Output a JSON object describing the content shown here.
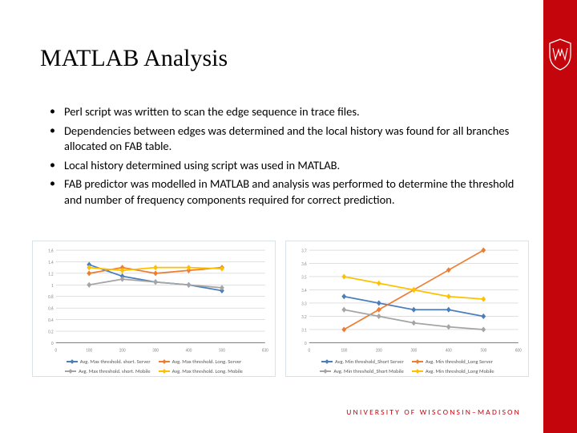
{
  "title": "MATLAB Analysis",
  "bullets": [
    "Perl script was written to scan the edge sequence in trace files.",
    "Dependencies between edges was determined and the local history was found for all branches allocated on FAB table.",
    "Local history determined using script was used in MATLAB.",
    "FAB predictor was modelled in MATLAB and analysis was performed to determine the threshold and number of frequency components required for correct prediction."
  ],
  "footer": "UNIVERSITY OF WISCONSIN–MADISON",
  "colors": {
    "accent": "#c5050c",
    "axis": "#888888",
    "grid": "#cccccc",
    "tick_text": "#888888"
  },
  "series_colors": {
    "blue": "#4a7ebb",
    "orange": "#ed7d31",
    "gray": "#a5a5a5",
    "yellow": "#ffc000"
  },
  "chart_left": {
    "title": "",
    "xlim": [
      0,
      630
    ],
    "xticks": [
      0,
      100,
      200,
      300,
      400,
      500,
      630
    ],
    "xtick_labels": [
      "0",
      "100",
      "200",
      "300",
      "400",
      "500",
      "630"
    ],
    "ylim": [
      0,
      1.6
    ],
    "yticks": [
      0,
      0.2,
      0.4,
      0.6,
      0.8,
      1,
      1.2,
      1.4,
      1.6
    ],
    "series": [
      {
        "name": "Avg. Max threshold. short. Server",
        "color": "blue",
        "x": [
          100,
          200,
          300,
          400,
          500
        ],
        "y": [
          1.35,
          1.15,
          1.05,
          1.0,
          0.9
        ]
      },
      {
        "name": "Avg. Max threshold. Long. Server",
        "color": "orange",
        "x": [
          100,
          200,
          300,
          400,
          500
        ],
        "y": [
          1.2,
          1.3,
          1.2,
          1.25,
          1.3
        ]
      },
      {
        "name": "Avg. Max threshold. short. Mobile",
        "color": "gray",
        "x": [
          100,
          200,
          300,
          400,
          500
        ],
        "y": [
          1.0,
          1.1,
          1.05,
          1.0,
          0.95
        ]
      },
      {
        "name": "Avg. Max threshold. Long. Mobile",
        "color": "yellow",
        "x": [
          100,
          200,
          300,
          400,
          500
        ],
        "y": [
          1.3,
          1.25,
          1.3,
          1.3,
          1.28
        ]
      }
    ],
    "legend": [
      {
        "label": "Avg. Max threshold. short. Server",
        "color": "blue"
      },
      {
        "label": "Avg. Max threshold. Long. Server",
        "color": "orange"
      },
      {
        "label": "Avg. Max threshold. short. Mobile",
        "color": "gray"
      },
      {
        "label": "Avg. Max threshold. Long. Mobile",
        "color": "yellow"
      }
    ]
  },
  "chart_right": {
    "title": "",
    "xlim": [
      0,
      600
    ],
    "xticks": [
      0,
      100,
      200,
      300,
      400,
      500,
      600
    ],
    "xtick_labels": [
      "0",
      "100",
      "200",
      "300",
      "400",
      "500",
      "600"
    ],
    "ylim": [
      0,
      3.7
    ],
    "yticks": [
      0,
      3.1,
      3.2,
      3.3,
      3.4,
      3.5,
      3.6,
      3.7
    ],
    "series": [
      {
        "name": "Avg. Min threshold_Short Server",
        "color": "blue",
        "x": [
          100,
          200,
          300,
          400,
          500
        ],
        "y": [
          3.35,
          3.3,
          3.25,
          3.25,
          3.2
        ]
      },
      {
        "name": "Avg. Min threshold_Long Server",
        "color": "orange",
        "x": [
          100,
          200,
          300,
          400,
          500
        ],
        "y": [
          3.1,
          3.25,
          3.4,
          3.55,
          3.7
        ]
      },
      {
        "name": "Avg. Min threshold_Short Mobile",
        "color": "gray",
        "x": [
          100,
          200,
          300,
          400,
          500
        ],
        "y": [
          3.25,
          3.2,
          3.15,
          3.12,
          3.1
        ]
      },
      {
        "name": "Avg. Min threshold_Long Mobile",
        "color": "yellow",
        "x": [
          100,
          200,
          300,
          400,
          500
        ],
        "y": [
          3.5,
          3.45,
          3.4,
          3.35,
          3.33
        ]
      }
    ],
    "legend": [
      {
        "label": "Avg. Min threshold_Short Server",
        "color": "blue"
      },
      {
        "label": "Avg. Min threshold_Long Server",
        "color": "orange"
      },
      {
        "label": "Avg. Min threshold_Short Mobile",
        "color": "gray"
      },
      {
        "label": "Avg. Min threshold_Long Mobile",
        "color": "yellow"
      }
    ]
  }
}
